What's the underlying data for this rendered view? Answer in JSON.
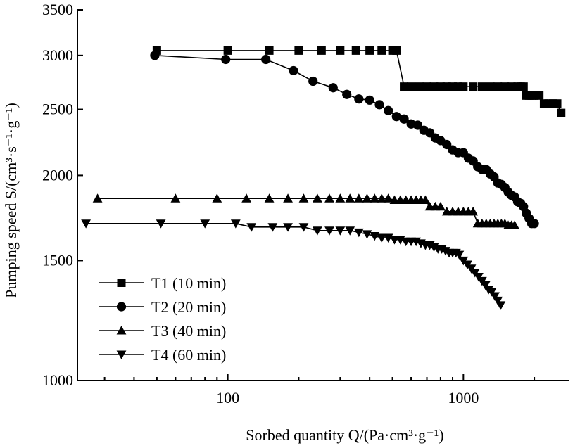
{
  "chart_data": {
    "type": "scatter",
    "xlabel": "Sorbed quantity Q/(Pa·cm³·g⁻¹)",
    "ylabel": "Pumping speed S/(cm³·s⁻¹·g⁻¹)",
    "xscale": "log",
    "yscale": "log",
    "xlim": [
      23,
      2800
    ],
    "ylim": [
      1000,
      3500
    ],
    "x_ticks": [
      {
        "value": 100,
        "label": "100"
      },
      {
        "value": 1000,
        "label": "1000"
      }
    ],
    "y_ticks": [
      {
        "value": 1000,
        "label": "1000"
      },
      {
        "value": 1500,
        "label": "1500"
      },
      {
        "value": 2000,
        "label": "2000"
      },
      {
        "value": 2500,
        "label": "2500"
      },
      {
        "value": 3000,
        "label": "3000"
      },
      {
        "value": 3500,
        "label": "3500"
      }
    ],
    "grid": false,
    "legend_position": "bottom-left",
    "series": [
      {
        "name": "T1 (10 min)",
        "marker": "square",
        "x": [
          50,
          100,
          150,
          200,
          250,
          300,
          350,
          400,
          450,
          500,
          520,
          560,
          600,
          650,
          700,
          750,
          800,
          850,
          900,
          950,
          1000,
          1100,
          1200,
          1300,
          1400,
          1500,
          1600,
          1700,
          1750,
          1800,
          1850,
          1900,
          1950,
          2000,
          2100,
          2200,
          2300,
          2400,
          2500,
          2600
        ],
        "y": [
          3050,
          3050,
          3050,
          3050,
          3050,
          3050,
          3050,
          3050,
          3050,
          3050,
          3050,
          2700,
          2700,
          2700,
          2700,
          2700,
          2700,
          2700,
          2700,
          2700,
          2700,
          2700,
          2700,
          2700,
          2700,
          2700,
          2700,
          2700,
          2700,
          2700,
          2620,
          2620,
          2620,
          2620,
          2620,
          2550,
          2550,
          2550,
          2550,
          2470
        ]
      },
      {
        "name": "T2 (20 min)",
        "marker": "circle",
        "x": [
          49,
          98,
          145,
          190,
          230,
          280,
          320,
          360,
          400,
          440,
          480,
          520,
          560,
          600,
          640,
          680,
          720,
          760,
          800,
          850,
          900,
          950,
          1000,
          1050,
          1100,
          1150,
          1200,
          1250,
          1300,
          1350,
          1400,
          1450,
          1500,
          1550,
          1600,
          1650,
          1700,
          1750,
          1800,
          1850,
          1900,
          1950,
          2000
        ],
        "y": [
          3000,
          2960,
          2960,
          2850,
          2750,
          2690,
          2630,
          2590,
          2580,
          2540,
          2490,
          2440,
          2420,
          2380,
          2370,
          2330,
          2310,
          2270,
          2250,
          2220,
          2180,
          2160,
          2160,
          2120,
          2100,
          2060,
          2040,
          2040,
          2010,
          1990,
          1950,
          1940,
          1920,
          1890,
          1870,
          1860,
          1830,
          1820,
          1800,
          1760,
          1730,
          1700,
          1700
        ]
      },
      {
        "name": "T3 (40 min)",
        "marker": "triangle-up",
        "x": [
          28,
          60,
          90,
          120,
          150,
          180,
          210,
          240,
          270,
          300,
          330,
          360,
          390,
          420,
          450,
          480,
          510,
          540,
          570,
          600,
          630,
          660,
          690,
          720,
          760,
          800,
          850,
          900,
          950,
          1000,
          1050,
          1100,
          1150,
          1200,
          1250,
          1300,
          1350,
          1400,
          1450,
          1500,
          1550,
          1600,
          1650
        ],
        "y": [
          1850,
          1850,
          1850,
          1850,
          1850,
          1850,
          1850,
          1850,
          1850,
          1850,
          1850,
          1850,
          1850,
          1850,
          1850,
          1850,
          1840,
          1840,
          1840,
          1840,
          1840,
          1840,
          1840,
          1800,
          1800,
          1800,
          1770,
          1770,
          1770,
          1770,
          1770,
          1770,
          1700,
          1700,
          1700,
          1700,
          1700,
          1700,
          1700,
          1700,
          1690,
          1690,
          1690
        ]
      },
      {
        "name": "T4 (60 min)",
        "marker": "triangle-down",
        "x": [
          25,
          52,
          80,
          108,
          126,
          155,
          180,
          210,
          240,
          270,
          300,
          330,
          360,
          390,
          420,
          450,
          480,
          510,
          540,
          570,
          600,
          630,
          660,
          690,
          720,
          750,
          780,
          810,
          840,
          870,
          900,
          930,
          960,
          1000,
          1040,
          1080,
          1120,
          1160,
          1200,
          1240,
          1280,
          1320,
          1360,
          1400,
          1440
        ],
        "y": [
          1700,
          1700,
          1700,
          1700,
          1680,
          1680,
          1680,
          1680,
          1660,
          1660,
          1660,
          1660,
          1650,
          1640,
          1630,
          1620,
          1620,
          1610,
          1610,
          1600,
          1600,
          1600,
          1590,
          1580,
          1580,
          1570,
          1560,
          1560,
          1550,
          1540,
          1540,
          1540,
          1530,
          1500,
          1480,
          1460,
          1440,
          1420,
          1400,
          1380,
          1360,
          1350,
          1330,
          1310,
          1290
        ]
      }
    ]
  }
}
